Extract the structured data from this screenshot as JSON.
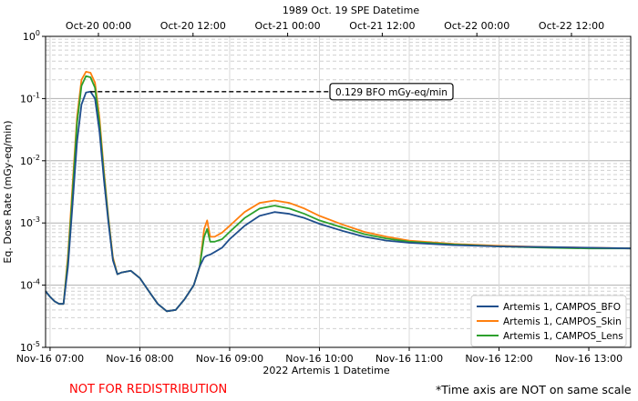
{
  "chart_data": {
    "type": "line",
    "title": "",
    "xlabel": "2022 Artemis 1 Datetime",
    "ylabel": "Eq. Dose Rate (mGy-eq/min)",
    "top_xlabel": "1989 Oct. 19 SPE Datetime",
    "yscale": "log",
    "ylim": [
      1e-05,
      1
    ],
    "xlim": [
      "2022-11-16 06:57",
      "2022-11-16 13:28"
    ],
    "x_ticks": [
      "Nov-16 07:00",
      "Nov-16 08:00",
      "Nov-16 09:00",
      "Nov-16 10:00",
      "Nov-16 11:00",
      "Nov-16 12:00",
      "Nov-16 13:00"
    ],
    "top_ticks": [
      "Oct-20 00:00",
      "Oct-20 12:00",
      "Oct-21 00:00",
      "Oct-21 12:00",
      "Oct-22 00:00",
      "Oct-22 12:00"
    ],
    "y_ticks": [
      "10^-5",
      "10^-4",
      "10^-3",
      "10^-2",
      "10^-1",
      "10^0"
    ],
    "grid": true,
    "legend_position": "bottom-right",
    "annotation": {
      "text": "0.129 BFO mGy-eq/min",
      "x": "2022-11-16 07:27",
      "y": 0.129
    },
    "x": [
      "2022-11-16 06:57",
      "2022-11-16 07:00",
      "2022-11-16 07:03",
      "2022-11-16 07:06",
      "2022-11-16 07:09",
      "2022-11-16 07:12",
      "2022-11-16 07:15",
      "2022-11-16 07:18",
      "2022-11-16 07:21",
      "2022-11-16 07:24",
      "2022-11-16 07:27",
      "2022-11-16 07:30",
      "2022-11-16 07:33",
      "2022-11-16 07:36",
      "2022-11-16 07:39",
      "2022-11-16 07:42",
      "2022-11-16 07:45",
      "2022-11-16 07:48",
      "2022-11-16 07:54",
      "2022-11-16 08:00",
      "2022-11-16 08:06",
      "2022-11-16 08:12",
      "2022-11-16 08:18",
      "2022-11-16 08:24",
      "2022-11-16 08:30",
      "2022-11-16 08:36",
      "2022-11-16 08:40",
      "2022-11-16 08:43",
      "2022-11-16 08:45",
      "2022-11-16 08:47",
      "2022-11-16 08:50",
      "2022-11-16 08:55",
      "2022-11-16 09:00",
      "2022-11-16 09:10",
      "2022-11-16 09:20",
      "2022-11-16 09:30",
      "2022-11-16 09:40",
      "2022-11-16 09:50",
      "2022-11-16 10:00",
      "2022-11-16 10:15",
      "2022-11-16 10:30",
      "2022-11-16 10:45",
      "2022-11-16 11:00",
      "2022-11-16 11:30",
      "2022-11-16 12:00",
      "2022-11-16 12:30",
      "2022-11-16 13:00",
      "2022-11-16 13:28"
    ],
    "series": [
      {
        "name": "Artemis 1, CAMPOS_BFO",
        "color": "#1f4e8c",
        "values": [
          8e-05,
          6.5e-05,
          5.5e-05,
          5e-05,
          5e-05,
          0.0002,
          0.002,
          0.02,
          0.08,
          0.125,
          0.129,
          0.1,
          0.03,
          0.005,
          0.001,
          0.00025,
          0.00015,
          0.00016,
          0.00017,
          0.00013,
          8e-05,
          5e-05,
          3.8e-05,
          4e-05,
          6e-05,
          0.0001,
          0.0002,
          0.00028,
          0.0003,
          0.00031,
          0.00034,
          0.0004,
          0.00055,
          0.0009,
          0.0013,
          0.0015,
          0.0014,
          0.0012,
          0.00097,
          0.00075,
          0.0006,
          0.00052,
          0.00048,
          0.00044,
          0.00042,
          0.00041,
          0.0004,
          0.00039
        ]
      },
      {
        "name": "Artemis 1, CAMPOS_Skin",
        "color": "#ff7f0e",
        "values": [
          8e-05,
          6.5e-05,
          5.5e-05,
          5e-05,
          5e-05,
          0.0003,
          0.004,
          0.05,
          0.2,
          0.27,
          0.26,
          0.18,
          0.05,
          0.007,
          0.0012,
          0.00028,
          0.00015,
          0.00016,
          0.00017,
          0.00013,
          8e-05,
          5e-05,
          3.8e-05,
          4e-05,
          6e-05,
          0.0001,
          0.0002,
          0.0008,
          0.0011,
          0.0006,
          0.0006,
          0.0007,
          0.0009,
          0.0015,
          0.0021,
          0.0023,
          0.0021,
          0.0017,
          0.0013,
          0.00095,
          0.00072,
          0.0006,
          0.00052,
          0.00046,
          0.00043,
          0.00041,
          0.0004,
          0.00039
        ]
      },
      {
        "name": "Artemis 1, CAMPOS_Lens",
        "color": "#2ca02c",
        "values": [
          8e-05,
          6.5e-05,
          5.5e-05,
          5e-05,
          5e-05,
          0.00025,
          0.003,
          0.04,
          0.16,
          0.23,
          0.22,
          0.15,
          0.04,
          0.006,
          0.0011,
          0.00026,
          0.00015,
          0.00016,
          0.00017,
          0.00013,
          8e-05,
          5e-05,
          3.8e-05,
          4e-05,
          6e-05,
          0.0001,
          0.0002,
          0.0006,
          0.0008,
          0.0005,
          0.0005,
          0.00055,
          0.00072,
          0.0012,
          0.0017,
          0.0019,
          0.0017,
          0.0014,
          0.0011,
          0.00085,
          0.00066,
          0.00056,
          0.0005,
          0.00045,
          0.00042,
          0.0004,
          0.00039,
          0.00039
        ]
      }
    ]
  },
  "notice": "NOT FOR REDISTRIBUTION",
  "footnote": "*Time axis are NOT on same scale"
}
